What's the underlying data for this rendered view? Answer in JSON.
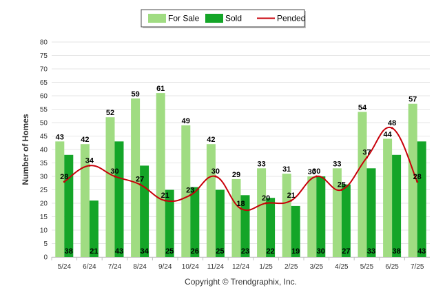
{
  "chart_data": {
    "type": "bar",
    "categories": [
      "5/24",
      "6/24",
      "7/24",
      "8/24",
      "9/24",
      "10/24",
      "11/24",
      "12/24",
      "1/25",
      "2/25",
      "3/25",
      "4/25",
      "5/25",
      "6/25",
      "7/25"
    ],
    "series": [
      {
        "name": "For Sale",
        "kind": "bar",
        "color": "#a0dc82",
        "values": [
          43,
          42,
          52,
          59,
          61,
          49,
          42,
          29,
          33,
          31,
          30,
          33,
          54,
          44,
          57
        ]
      },
      {
        "name": "Sold",
        "kind": "bar",
        "color": "#14a528",
        "values": [
          38,
          21,
          43,
          34,
          25,
          26,
          25,
          23,
          22,
          19,
          30,
          27,
          33,
          38,
          43
        ]
      },
      {
        "name": "Pended",
        "kind": "line",
        "color": "#c8000a",
        "values": [
          28,
          34,
          30,
          27,
          21,
          23,
          30,
          18,
          20,
          21,
          30,
          25,
          37,
          48,
          28
        ]
      }
    ],
    "ylabel": "Number of Homes",
    "xlabel": "",
    "ylim": [
      0,
      80
    ],
    "yticks": [
      0,
      5,
      10,
      15,
      20,
      25,
      30,
      35,
      40,
      45,
      50,
      55,
      60,
      65,
      70,
      75,
      80
    ],
    "grid": true,
    "legend_position": "top-center",
    "credit": "Copyright © Trendgraphix, Inc."
  }
}
